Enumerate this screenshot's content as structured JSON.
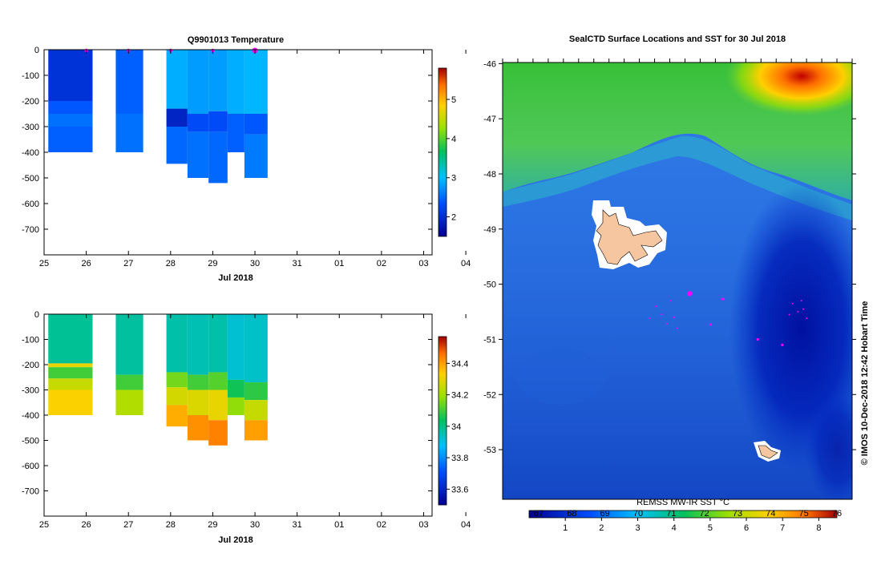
{
  "chart_data": [
    {
      "type": "heatmap",
      "title": "Q9901013  Temperature",
      "xlabel": "Jul 2018",
      "x_ticks": [
        "25",
        "26",
        "27",
        "28",
        "29",
        "30",
        "31",
        "01",
        "02",
        "03",
        "04"
      ],
      "y_ticks": [
        "0",
        "-100",
        "-200",
        "-300",
        "-400",
        "-500",
        "-600",
        "-700"
      ],
      "ylim": [
        -800,
        0
      ],
      "colorbar_ticks": [
        "2",
        "3",
        "4",
        "5"
      ],
      "colorbar_range": [
        1.5,
        5.8
      ],
      "profile_markers": [
        26.0,
        27.0,
        28.0,
        29.0,
        30.0
      ],
      "profiles": [
        {
          "day": 25.1,
          "width": 1.05,
          "bottom": -400,
          "layers": [
            {
              "to": -200,
              "value": 2.05
            },
            {
              "to": -250,
              "value": 2.4
            },
            {
              "to": -300,
              "value": 2.55
            },
            {
              "to": -400,
              "value": 2.45
            }
          ]
        },
        {
          "day": 26.7,
          "width": 0.65,
          "bottom": -400,
          "layers": [
            {
              "to": -250,
              "value": 2.45
            },
            {
              "to": -400,
              "value": 2.55
            }
          ]
        },
        {
          "day": 27.9,
          "width": 0.5,
          "bottom": -445,
          "layers": [
            {
              "to": -230,
              "value": 2.9
            },
            {
              "to": -300,
              "value": 1.9
            },
            {
              "to": -445,
              "value": 2.5
            }
          ]
        },
        {
          "day": 28.4,
          "width": 0.5,
          "bottom": -500,
          "layers": [
            {
              "to": -250,
              "value": 2.8
            },
            {
              "to": -320,
              "value": 2.3
            },
            {
              "to": -500,
              "value": 2.55
            }
          ]
        },
        {
          "day": 28.9,
          "width": 0.45,
          "bottom": -520,
          "layers": [
            {
              "to": -240,
              "value": 2.8
            },
            {
              "to": -320,
              "value": 2.3
            },
            {
              "to": -520,
              "value": 2.5
            }
          ]
        },
        {
          "day": 29.35,
          "width": 0.4,
          "bottom": -400,
          "layers": [
            {
              "to": -250,
              "value": 2.9
            },
            {
              "to": -400,
              "value": 2.45
            }
          ]
        },
        {
          "day": 29.75,
          "width": 0.55,
          "bottom": -500,
          "layers": [
            {
              "to": -250,
              "value": 2.95
            },
            {
              "to": -330,
              "value": 2.4
            },
            {
              "to": -500,
              "value": 2.6
            }
          ]
        }
      ]
    },
    {
      "type": "heatmap",
      "title": "",
      "xlabel": "Jul 2018",
      "x_ticks": [
        "25",
        "26",
        "27",
        "28",
        "29",
        "30",
        "31",
        "01",
        "02",
        "03",
        "04"
      ],
      "y_ticks": [
        "0",
        "-100",
        "-200",
        "-300",
        "-400",
        "-500",
        "-600",
        "-700"
      ],
      "ylim": [
        -800,
        0
      ],
      "colorbar_ticks": [
        "33.6",
        "33.8",
        "34",
        "34.2",
        "34.4"
      ],
      "colorbar_range": [
        33.5,
        34.57
      ],
      "profiles": [
        {
          "day": 25.1,
          "width": 1.05,
          "bottom": -400,
          "layers": [
            {
              "to": -195,
              "value": 33.98
            },
            {
              "to": -210,
              "value": 34.3
            },
            {
              "to": -255,
              "value": 34.1
            },
            {
              "to": -300,
              "value": 34.25
            },
            {
              "to": -400,
              "value": 34.33
            }
          ]
        },
        {
          "day": 26.7,
          "width": 0.65,
          "bottom": -400,
          "layers": [
            {
              "to": -240,
              "value": 33.97
            },
            {
              "to": -300,
              "value": 34.1
            },
            {
              "to": -400,
              "value": 34.22
            }
          ]
        },
        {
          "day": 27.9,
          "width": 0.5,
          "bottom": -445,
          "layers": [
            {
              "to": -230,
              "value": 33.96
            },
            {
              "to": -290,
              "value": 34.15
            },
            {
              "to": -360,
              "value": 34.27
            },
            {
              "to": -445,
              "value": 34.38
            }
          ]
        },
        {
          "day": 28.4,
          "width": 0.5,
          "bottom": -500,
          "layers": [
            {
              "to": -240,
              "value": 33.95
            },
            {
              "to": -300,
              "value": 34.1
            },
            {
              "to": -400,
              "value": 34.28
            },
            {
              "to": -500,
              "value": 34.42
            }
          ]
        },
        {
          "day": 28.9,
          "width": 0.45,
          "bottom": -520,
          "layers": [
            {
              "to": -230,
              "value": 33.96
            },
            {
              "to": -300,
              "value": 34.12
            },
            {
              "to": -420,
              "value": 34.3
            },
            {
              "to": -520,
              "value": 34.44
            }
          ]
        },
        {
          "day": 29.35,
          "width": 0.4,
          "bottom": -400,
          "layers": [
            {
              "to": -260,
              "value": 33.92
            },
            {
              "to": -330,
              "value": 34.05
            },
            {
              "to": -400,
              "value": 34.18
            }
          ]
        },
        {
          "day": 29.75,
          "width": 0.55,
          "bottom": -500,
          "layers": [
            {
              "to": -270,
              "value": 33.93
            },
            {
              "to": -340,
              "value": 34.08
            },
            {
              "to": -420,
              "value": 34.25
            },
            {
              "to": -500,
              "value": 34.4
            }
          ]
        }
      ]
    },
    {
      "type": "heatmap",
      "title": "SealCTD Surface Locations and SST for 30 Jul 2018",
      "y_ticks": [
        "-46",
        "-47",
        "-48",
        "-49",
        "-50",
        "-51",
        "-52",
        "-53"
      ],
      "ylim": [
        -53.9,
        -45.98
      ],
      "colorbar_top_ticks": [
        "67",
        "68",
        "69",
        "70",
        "71",
        "72",
        "73",
        "74",
        "75",
        "76"
      ],
      "colorbar_bottom_ticks": [
        "1",
        "2",
        "3",
        "4",
        "5",
        "6",
        "7",
        "8"
      ],
      "colorbar_range": [
        0,
        8.5
      ],
      "colorbar_caption": "REMSS MW-IR SST °C",
      "side_label": "© IMOS 10-Dec-2018 12:42 Hobart Time",
      "sst_field": "Green north band (4-5 °C) with warm 6-8 °C patch in the north-east; blue 2-3 °C across the centre and south with cold ~1-1.5 °C pool in the east.",
      "islands": [
        "Kerguelen",
        "Heard"
      ],
      "seal_locations": [
        {
          "x": 0.535,
          "lat": -50.17,
          "size": 3.2
        },
        {
          "x": 0.63,
          "lat": -50.27,
          "size": 1.6
        },
        {
          "x": 0.595,
          "lat": -50.73,
          "size": 1.5
        },
        {
          "x": 0.73,
          "lat": -51.0,
          "size": 1.6
        },
        {
          "x": 0.8,
          "lat": -51.1,
          "size": 1.6
        },
        {
          "x": 0.48,
          "lat": -50.3,
          "size": 1.0
        },
        {
          "x": 0.44,
          "lat": -50.4,
          "size": 1.0
        },
        {
          "x": 0.455,
          "lat": -50.55,
          "size": 1.0
        },
        {
          "x": 0.49,
          "lat": -50.6,
          "size": 1.0
        },
        {
          "x": 0.47,
          "lat": -50.72,
          "size": 1.0
        },
        {
          "x": 0.5,
          "lat": -50.8,
          "size": 1.0
        },
        {
          "x": 0.42,
          "lat": -50.62,
          "size": 1.0
        },
        {
          "x": 0.83,
          "lat": -50.35,
          "size": 1.0
        },
        {
          "x": 0.845,
          "lat": -50.5,
          "size": 1.0
        },
        {
          "x": 0.86,
          "lat": -50.45,
          "size": 1.0
        },
        {
          "x": 0.82,
          "lat": -50.55,
          "size": 1.0
        },
        {
          "x": 0.87,
          "lat": -50.62,
          "size": 1.0
        },
        {
          "x": 0.855,
          "lat": -50.3,
          "size": 1.0
        }
      ]
    }
  ]
}
